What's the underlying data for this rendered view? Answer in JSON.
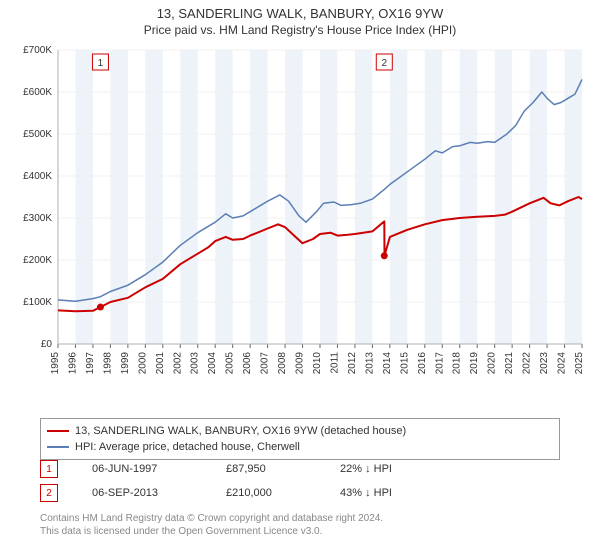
{
  "title": "13, SANDERLING WALK, BANBURY, OX16 9YW",
  "subtitle": "Price paid vs. HM Land Registry's House Price Index (HPI)",
  "chart": {
    "type": "line",
    "background_color": "#ffffff",
    "plot_border_color": "#b0b0b0",
    "grid_line_color": "#f0f0f0",
    "shaded_band_color": "#dfeaf4",
    "xlim": [
      1995,
      2025
    ],
    "xtick_years": [
      1995,
      1996,
      1997,
      1998,
      1999,
      2000,
      2001,
      2002,
      2003,
      2004,
      2005,
      2006,
      2007,
      2008,
      2009,
      2010,
      2011,
      2012,
      2013,
      2014,
      2015,
      2016,
      2017,
      2018,
      2019,
      2020,
      2021,
      2022,
      2023,
      2024,
      2025
    ],
    "ylim": [
      0,
      700000
    ],
    "ytick_step": 100000,
    "ytick_labels": [
      "£0",
      "£100K",
      "£200K",
      "£300K",
      "£400K",
      "£500K",
      "£600K",
      "£700K"
    ],
    "marker_border_color": "#cc0000",
    "marker_text_color": "#cc0000",
    "series": {
      "price_paid": {
        "label": "13, SANDERLING WALK, BANBURY, OX16 9YW (detached house)",
        "color": "#cc0000",
        "line_width": 2,
        "points": [
          [
            1995.0,
            80000
          ],
          [
            1996.0,
            78000
          ],
          [
            1997.0,
            79000
          ],
          [
            1997.43,
            87950
          ],
          [
            1998.0,
            100000
          ],
          [
            1999.0,
            110000
          ],
          [
            2000.0,
            135000
          ],
          [
            2001.0,
            155000
          ],
          [
            2002.0,
            190000
          ],
          [
            2003.0,
            215000
          ],
          [
            2003.6,
            230000
          ],
          [
            2004.0,
            245000
          ],
          [
            2004.6,
            255000
          ],
          [
            2005.0,
            248000
          ],
          [
            2005.6,
            250000
          ],
          [
            2006.0,
            258000
          ],
          [
            2007.0,
            275000
          ],
          [
            2007.6,
            285000
          ],
          [
            2008.0,
            278000
          ],
          [
            2008.6,
            255000
          ],
          [
            2009.0,
            240000
          ],
          [
            2009.6,
            250000
          ],
          [
            2010.0,
            262000
          ],
          [
            2010.6,
            265000
          ],
          [
            2011.0,
            258000
          ],
          [
            2011.6,
            260000
          ],
          [
            2012.0,
            262000
          ],
          [
            2013.0,
            268000
          ],
          [
            2013.68,
            292000
          ],
          [
            2013.69,
            210000
          ],
          [
            2014.0,
            255000
          ],
          [
            2015.0,
            272000
          ],
          [
            2016.0,
            285000
          ],
          [
            2017.0,
            295000
          ],
          [
            2018.0,
            300000
          ],
          [
            2019.0,
            303000
          ],
          [
            2020.0,
            305000
          ],
          [
            2020.6,
            308000
          ],
          [
            2021.0,
            315000
          ],
          [
            2022.0,
            335000
          ],
          [
            2022.8,
            348000
          ],
          [
            2023.2,
            335000
          ],
          [
            2023.7,
            330000
          ],
          [
            2024.2,
            340000
          ],
          [
            2024.8,
            350000
          ],
          [
            2025.0,
            345000
          ]
        ]
      },
      "hpi": {
        "label": "HPI: Average price, detached house, Cherwell",
        "color": "#5b7fb5",
        "line_width": 1.5,
        "points": [
          [
            1995.0,
            105000
          ],
          [
            1996.0,
            102000
          ],
          [
            1997.0,
            108000
          ],
          [
            1997.43,
            112650
          ],
          [
            1998.0,
            125000
          ],
          [
            1999.0,
            140000
          ],
          [
            2000.0,
            165000
          ],
          [
            2001.0,
            195000
          ],
          [
            2002.0,
            235000
          ],
          [
            2003.0,
            265000
          ],
          [
            2004.0,
            290000
          ],
          [
            2004.6,
            310000
          ],
          [
            2005.0,
            300000
          ],
          [
            2005.6,
            305000
          ],
          [
            2006.0,
            315000
          ],
          [
            2007.0,
            340000
          ],
          [
            2007.7,
            355000
          ],
          [
            2008.2,
            340000
          ],
          [
            2008.8,
            305000
          ],
          [
            2009.2,
            290000
          ],
          [
            2009.8,
            315000
          ],
          [
            2010.2,
            335000
          ],
          [
            2010.8,
            338000
          ],
          [
            2011.2,
            330000
          ],
          [
            2011.8,
            332000
          ],
          [
            2012.3,
            335000
          ],
          [
            2013.0,
            345000
          ],
          [
            2013.68,
            368000
          ],
          [
            2014.0,
            380000
          ],
          [
            2015.0,
            410000
          ],
          [
            2016.0,
            440000
          ],
          [
            2016.6,
            460000
          ],
          [
            2017.0,
            455000
          ],
          [
            2017.6,
            470000
          ],
          [
            2018.0,
            472000
          ],
          [
            2018.6,
            480000
          ],
          [
            2019.0,
            478000
          ],
          [
            2019.6,
            482000
          ],
          [
            2020.0,
            480000
          ],
          [
            2020.7,
            500000
          ],
          [
            2021.2,
            520000
          ],
          [
            2021.7,
            555000
          ],
          [
            2022.2,
            575000
          ],
          [
            2022.7,
            600000
          ],
          [
            2023.0,
            585000
          ],
          [
            2023.4,
            570000
          ],
          [
            2023.8,
            575000
          ],
          [
            2024.2,
            585000
          ],
          [
            2024.6,
            595000
          ],
          [
            2025.0,
            630000
          ]
        ]
      }
    },
    "sale_markers": [
      {
        "n": "1",
        "year": 1997.43,
        "price": 87950,
        "dot_color": "#cc0000"
      },
      {
        "n": "2",
        "year": 2013.68,
        "price": 210000,
        "dot_color": "#cc0000"
      }
    ]
  },
  "legend": {
    "items": [
      {
        "color": "#cc0000",
        "label_key": "chart.series.price_paid.label"
      },
      {
        "color": "#5b7fb5",
        "label_key": "chart.series.hpi.label"
      }
    ]
  },
  "sales": [
    {
      "n": "1",
      "date": "06-JUN-1997",
      "price": "£87,950",
      "delta": "22%",
      "direction": "↓",
      "vs": "HPI"
    },
    {
      "n": "2",
      "date": "06-SEP-2013",
      "price": "£210,000",
      "delta": "43%",
      "direction": "↓",
      "vs": "HPI"
    }
  ],
  "footer_line1": "Contains HM Land Registry data © Crown copyright and database right 2024.",
  "footer_line2": "This data is licensed under the Open Government Licence v3.0."
}
